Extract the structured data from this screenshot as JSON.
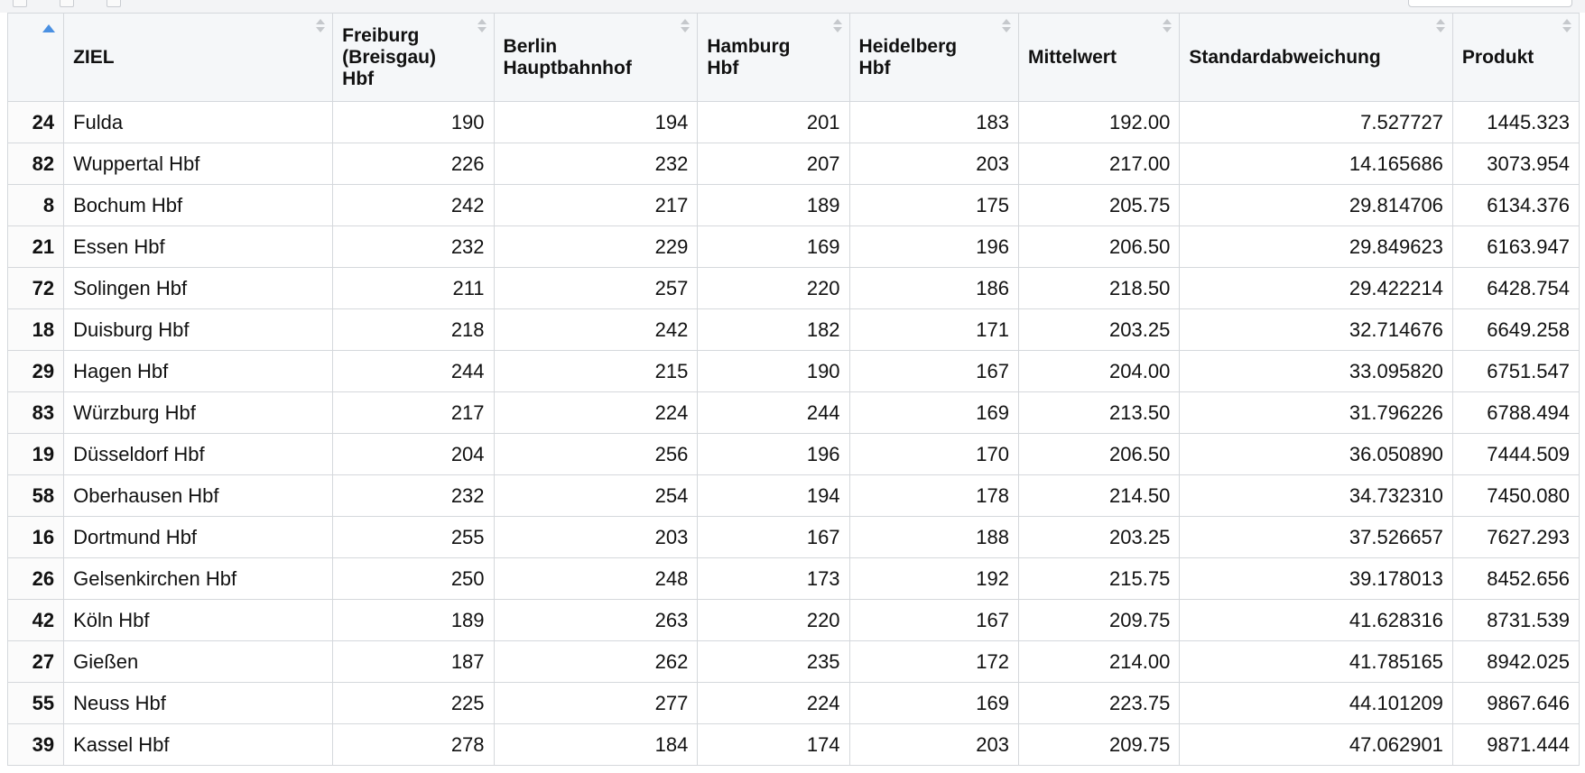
{
  "table": {
    "columns": [
      {
        "key": "rownum",
        "label": ""
      },
      {
        "key": "ziel",
        "label": "ZIEL"
      },
      {
        "key": "freiburg",
        "label": "Freiburg (Breisgau) Hbf"
      },
      {
        "key": "berlin",
        "label": "Berlin Hauptbahnhof"
      },
      {
        "key": "hamburg",
        "label": "Hamburg Hbf"
      },
      {
        "key": "heidelberg",
        "label": "Heidelberg Hbf"
      },
      {
        "key": "mittelwert",
        "label": "Mittelwert"
      },
      {
        "key": "std",
        "label": "Standardabweichung"
      },
      {
        "key": "produkt",
        "label": "Produkt"
      }
    ],
    "sorted_column": "rownum",
    "rows": [
      [
        "24",
        "Fulda",
        "190",
        "194",
        "201",
        "183",
        "192.00",
        "7.527727",
        "1445.323"
      ],
      [
        "82",
        "Wuppertal Hbf",
        "226",
        "232",
        "207",
        "203",
        "217.00",
        "14.165686",
        "3073.954"
      ],
      [
        "8",
        "Bochum Hbf",
        "242",
        "217",
        "189",
        "175",
        "205.75",
        "29.814706",
        "6134.376"
      ],
      [
        "21",
        "Essen Hbf",
        "232",
        "229",
        "169",
        "196",
        "206.50",
        "29.849623",
        "6163.947"
      ],
      [
        "72",
        "Solingen Hbf",
        "211",
        "257",
        "220",
        "186",
        "218.50",
        "29.422214",
        "6428.754"
      ],
      [
        "18",
        "Duisburg Hbf",
        "218",
        "242",
        "182",
        "171",
        "203.25",
        "32.714676",
        "6649.258"
      ],
      [
        "29",
        "Hagen Hbf",
        "244",
        "215",
        "190",
        "167",
        "204.00",
        "33.095820",
        "6751.547"
      ],
      [
        "83",
        "Würzburg Hbf",
        "217",
        "224",
        "244",
        "169",
        "213.50",
        "31.796226",
        "6788.494"
      ],
      [
        "19",
        "Düsseldorf Hbf",
        "204",
        "256",
        "196",
        "170",
        "206.50",
        "36.050890",
        "7444.509"
      ],
      [
        "58",
        "Oberhausen Hbf",
        "232",
        "254",
        "194",
        "178",
        "214.50",
        "34.732310",
        "7450.080"
      ],
      [
        "16",
        "Dortmund Hbf",
        "255",
        "203",
        "167",
        "188",
        "203.25",
        "37.526657",
        "7627.293"
      ],
      [
        "26",
        "Gelsenkirchen Hbf",
        "250",
        "248",
        "173",
        "192",
        "215.75",
        "39.178013",
        "8452.656"
      ],
      [
        "42",
        "Köln Hbf",
        "189",
        "263",
        "220",
        "167",
        "209.75",
        "41.628316",
        "8731.539"
      ],
      [
        "27",
        "Gießen",
        "187",
        "262",
        "235",
        "172",
        "214.00",
        "41.785165",
        "8942.025"
      ],
      [
        "55",
        "Neuss Hbf",
        "225",
        "277",
        "224",
        "169",
        "223.75",
        "44.101209",
        "9867.646"
      ],
      [
        "39",
        "Kassel Hbf",
        "278",
        "184",
        "174",
        "203",
        "209.75",
        "47.062901",
        "9871.444"
      ]
    ]
  },
  "colors": {
    "header_bg": "#f5f7f9",
    "border": "#d5d8dc",
    "sort_active": "#4a90e2",
    "sort_inactive": "#c5c8cc"
  }
}
